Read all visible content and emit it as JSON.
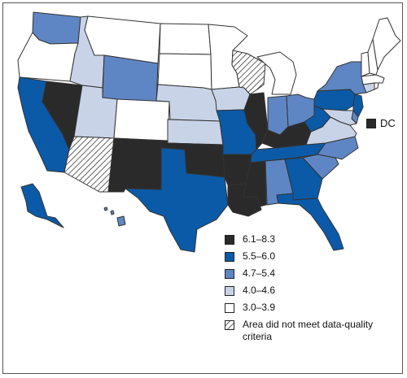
{
  "legend": {
    "items": [
      {
        "label": "6.1–8.3",
        "color": "#2a2a2a"
      },
      {
        "label": "5.5–6.0",
        "color": "#0b5aa8"
      },
      {
        "label": "4.7–5.4",
        "color": "#5f86c4"
      },
      {
        "label": "4.0–4.6",
        "color": "#c9d3e8"
      },
      {
        "label": "3.0–3.9",
        "color": "#ffffff"
      }
    ],
    "no_data": {
      "label": "Area did not meet data-quality criteria",
      "fill": "hatch"
    }
  },
  "dc": {
    "label": "DC",
    "category": "6.1–8.3"
  },
  "states": {
    "WA": "4.7–5.4",
    "OR": "3.0–3.9",
    "CA": "5.5–6.0",
    "NV": "6.1–8.3",
    "ID": "4.0–4.6",
    "MT": "3.0–3.9",
    "WY": "4.7–5.4",
    "UT": "4.0–4.6",
    "AZ": "no-data",
    "CO": "3.0–3.9",
    "NM": "6.1–8.3",
    "ND": "3.0–3.9",
    "SD": "3.0–3.9",
    "NE": "4.0–4.6",
    "KS": "4.0–4.6",
    "OK": "6.1–8.3",
    "TX": "5.5–6.0",
    "MN": "3.0–3.9",
    "IA": "4.0–4.6",
    "MO": "5.5–6.0",
    "AR": "6.1–8.3",
    "LA": "6.1–8.3",
    "WI": "no-data",
    "IL": "6.1–8.3",
    "MS": "6.1–8.3",
    "MI": "3.0–3.9",
    "IN": "4.7–5.4",
    "KY": "6.1–8.3",
    "TN": "5.5–6.0",
    "AL": "4.7–5.4",
    "OH": "4.7–5.4",
    "GA": "5.5–6.0",
    "FL": "5.5–6.0",
    "SC": "4.7–5.4",
    "NC": "4.7–5.4",
    "VA": "4.0–4.6",
    "WV": "5.5–6.0",
    "PA": "5.5–6.0",
    "NY": "4.7–5.4",
    "NJ": "5.5–6.0",
    "DE": "4.7–5.4",
    "MD": "4.0–4.6",
    "CT": "4.0–4.6",
    "RI": "3.0–3.9",
    "MA": "3.0–3.9",
    "VT": "3.0–3.9",
    "NH": "3.0–3.9",
    "ME": "3.0–3.9",
    "AK": "5.5–6.0",
    "HI": "4.7–5.4"
  }
}
